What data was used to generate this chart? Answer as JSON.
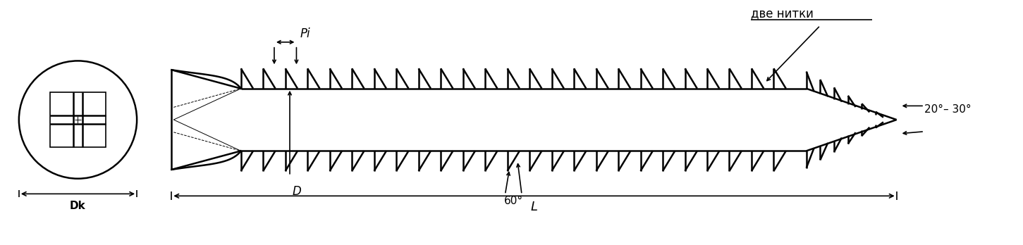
{
  "bg_color": "#ffffff",
  "line_color": "#000000",
  "fig_width": 14.51,
  "fig_height": 3.48,
  "dpi": 100,
  "labels": {
    "Dk": "Dk",
    "D": "D",
    "L": "L",
    "Pi": "Pi",
    "angle_tip": "20°– 30°",
    "angle_thread": "60°",
    "две_нитки": "две нитки"
  }
}
